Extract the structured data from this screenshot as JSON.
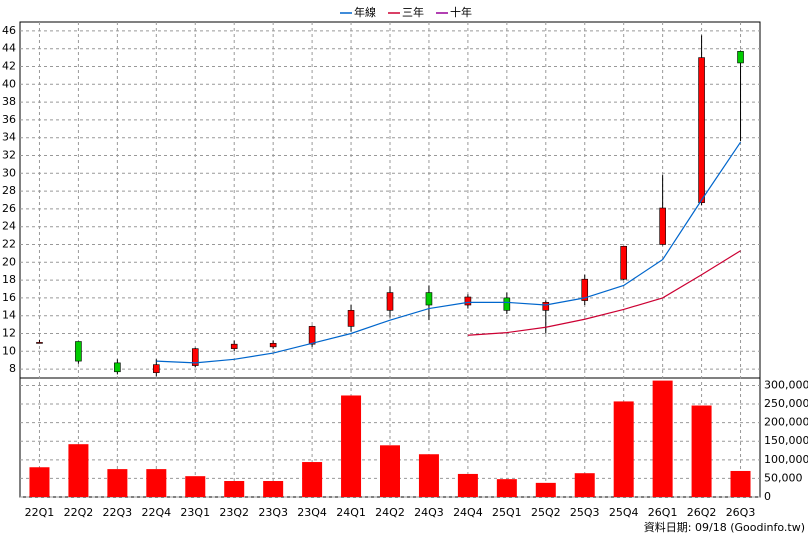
{
  "chart_data": {
    "type": "candlestick",
    "categories": [
      "22Q1",
      "22Q2",
      "22Q3",
      "22Q4",
      "23Q1",
      "23Q2",
      "23Q3",
      "23Q4",
      "24Q1",
      "24Q2",
      "24Q3",
      "24Q4",
      "25Q1",
      "25Q2",
      "25Q3",
      "25Q4",
      "26Q1",
      "26Q2",
      "26Q3"
    ],
    "open": [
      11.0,
      11.1,
      8.7,
      7.6,
      8.4,
      10.3,
      10.5,
      10.8,
      12.8,
      14.6,
      16.6,
      15.2,
      16.0,
      14.6,
      15.7,
      18.1,
      22.0,
      26.7,
      43.7
    ],
    "high": [
      11.3,
      11.1,
      9.1,
      9.1,
      10.4,
      11.2,
      11.2,
      12.9,
      15.2,
      17.3,
      17.4,
      16.4,
      16.6,
      15.7,
      18.6,
      21.8,
      29.8,
      45.5,
      43.8
    ],
    "low": [
      11.0,
      8.6,
      7.4,
      7.2,
      8.2,
      10.0,
      10.3,
      10.5,
      12.2,
      13.8,
      13.5,
      14.8,
      14.2,
      12.0,
      15.2,
      18.0,
      21.9,
      26.4,
      33.6
    ],
    "close": [
      11.0,
      8.9,
      7.7,
      8.5,
      10.3,
      10.8,
      10.9,
      12.8,
      14.6,
      16.6,
      15.2,
      16.1,
      14.6,
      15.5,
      18.1,
      21.8,
      26.1,
      43.0,
      42.4
    ],
    "up_color": "#ff0000",
    "down_color": "#00cc00",
    "series": [
      {
        "name": "年線",
        "color": "#0066cc",
        "values": [
          null,
          null,
          null,
          8.9,
          8.7,
          9.1,
          9.8,
          10.9,
          12.0,
          13.5,
          14.8,
          15.5,
          15.5,
          15.2,
          16.0,
          17.4,
          20.3,
          27.0,
          33.5
        ]
      },
      {
        "name": "三年",
        "color": "#cc0033",
        "values": [
          null,
          null,
          null,
          null,
          null,
          null,
          null,
          null,
          null,
          null,
          null,
          11.8,
          12.1,
          12.7,
          13.6,
          14.7,
          16.0,
          18.6,
          21.3
        ]
      },
      {
        "name": "十年",
        "color": "#990099",
        "values": [
          null,
          null,
          null,
          null,
          null,
          null,
          null,
          null,
          null,
          null,
          null,
          null,
          null,
          null,
          null,
          null,
          null,
          null,
          null
        ]
      }
    ],
    "legend": "top",
    "ylim": [
      7,
      47
    ],
    "yticks": [
      8,
      10,
      12,
      14,
      16,
      18,
      20,
      22,
      24,
      26,
      28,
      30,
      32,
      34,
      36,
      38,
      40,
      42,
      44,
      46
    ],
    "grid": true,
    "volume": {
      "type": "bar",
      "color": "#ff0000",
      "values": [
        80000,
        142000,
        75000,
        75000,
        56000,
        43000,
        43000,
        94000,
        273000,
        139000,
        115000,
        62000,
        48000,
        38000,
        64000,
        257000,
        313000,
        246000,
        70000
      ],
      "ylim": [
        0,
        320000
      ],
      "yticks": [
        {
          "value": 0,
          "label": "0"
        },
        {
          "value": 50000,
          "label": "50,000"
        },
        {
          "value": 100000,
          "label": "100,000"
        },
        {
          "value": 150000,
          "label": "150,000"
        },
        {
          "value": 200000,
          "label": "200,000"
        },
        {
          "value": 250000,
          "label": "250,000"
        },
        {
          "value": 300000,
          "label": "300,000"
        }
      ]
    },
    "note": "資料日期: 09/18 (Goodinfo.tw)"
  }
}
